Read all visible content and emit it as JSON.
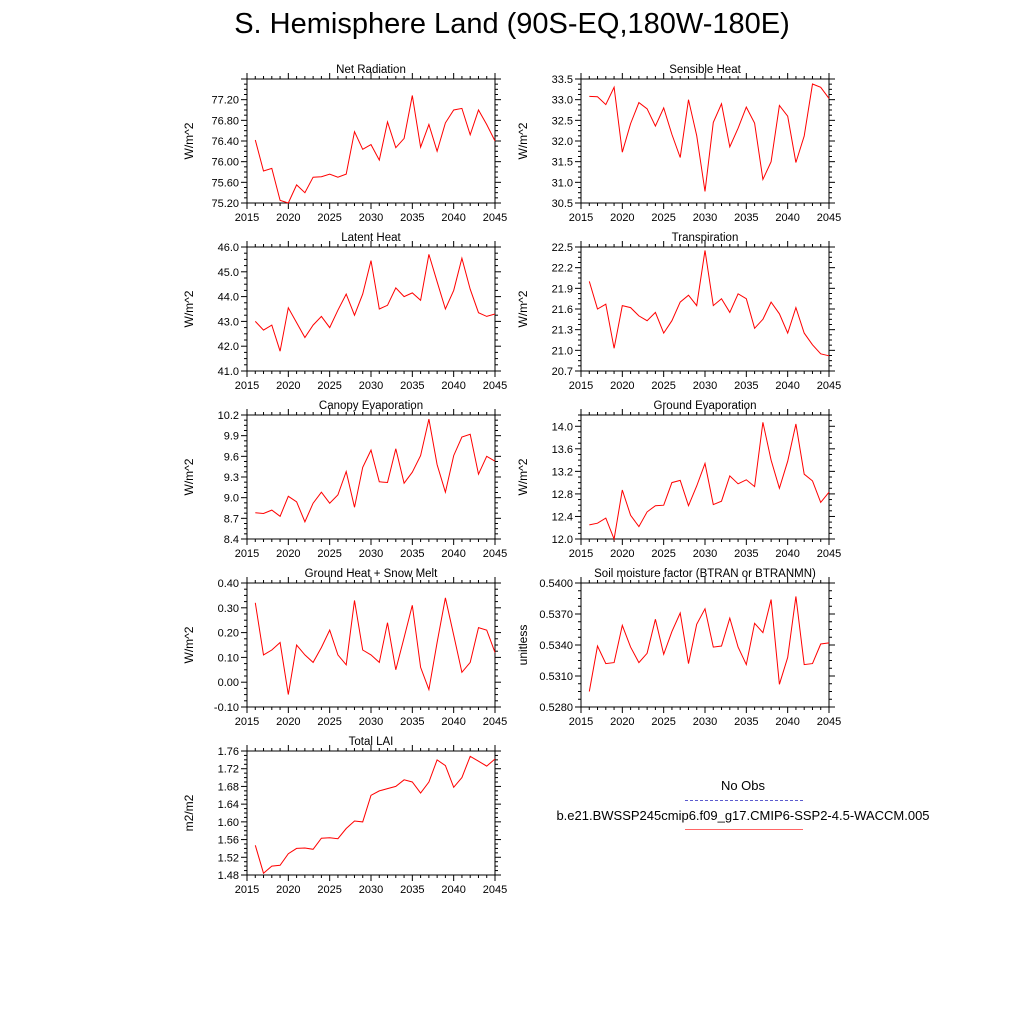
{
  "title": "S. Hemisphere Land (90S-EQ,180W-180E)",
  "legend": {
    "obs_label": "No Obs",
    "model_label": "b.e21.BWSSP245cmip6.f09_g17.CMIP6-SSP2-4.5-WACCM.005",
    "obs_color": "#5b5bcf",
    "model_color": "#ff0000"
  },
  "chart_data": [
    {
      "type": "line",
      "title": "Net Radiation",
      "ylabel": "W/m^2",
      "xlim": [
        2015,
        2045
      ],
      "ylim": [
        75.2,
        77.6
      ],
      "xticks": [
        "2015",
        "2020",
        "2025",
        "2030",
        "2035",
        "2040",
        "2045"
      ],
      "yticks": [
        "75.20",
        "75.60",
        "76.00",
        "76.40",
        "76.80",
        "77.20"
      ],
      "series": [
        {
          "color": "#ff0000",
          "x": [
            2016,
            2017,
            2018,
            2019,
            2020,
            2021,
            2022,
            2023,
            2024,
            2025,
            2026,
            2027,
            2028,
            2029,
            2030,
            2031,
            2032,
            2033,
            2034,
            2035,
            2036,
            2037,
            2038,
            2039,
            2040,
            2041,
            2042,
            2043,
            2044,
            2045
          ],
          "y": [
            76.42,
            75.82,
            75.87,
            75.25,
            75.2,
            75.55,
            75.4,
            75.7,
            75.71,
            75.76,
            75.7,
            75.76,
            76.58,
            76.24,
            76.33,
            76.03,
            76.77,
            76.27,
            76.45,
            77.28,
            76.28,
            76.72,
            76.2,
            76.75,
            77.0,
            77.03,
            76.52,
            77.0,
            76.72,
            76.4
          ]
        }
      ]
    },
    {
      "type": "line",
      "title": "Sensible Heat",
      "ylabel": "W/m^2",
      "xlim": [
        2015,
        2045
      ],
      "ylim": [
        30.5,
        33.5
      ],
      "xticks": [
        "2015",
        "2020",
        "2025",
        "2030",
        "2035",
        "2040",
        "2045"
      ],
      "yticks": [
        "30.5",
        "31.0",
        "31.5",
        "32.0",
        "32.5",
        "33.0",
        "33.5"
      ],
      "series": [
        {
          "color": "#ff0000",
          "x": [
            2016,
            2017,
            2018,
            2019,
            2020,
            2021,
            2022,
            2023,
            2024,
            2025,
            2026,
            2027,
            2028,
            2029,
            2030,
            2031,
            2032,
            2033,
            2034,
            2035,
            2036,
            2037,
            2038,
            2039,
            2040,
            2041,
            2042,
            2043,
            2044,
            2045
          ],
          "y": [
            33.08,
            33.07,
            32.88,
            33.3,
            31.73,
            32.42,
            32.93,
            32.78,
            32.36,
            32.8,
            32.16,
            31.6,
            33.0,
            32.13,
            30.78,
            32.45,
            32.9,
            31.86,
            32.31,
            32.82,
            32.43,
            31.07,
            31.5,
            32.86,
            32.6,
            31.48,
            32.12,
            33.38,
            33.3,
            33.03
          ]
        }
      ]
    },
    {
      "type": "line",
      "title": "Latent Heat",
      "ylabel": "W/m^2",
      "xlim": [
        2015,
        2045
      ],
      "ylim": [
        41.0,
        46.0
      ],
      "xticks": [
        "2015",
        "2020",
        "2025",
        "2030",
        "2035",
        "2040",
        "2045"
      ],
      "yticks": [
        "41.0",
        "42.0",
        "43.0",
        "44.0",
        "45.0",
        "46.0"
      ],
      "series": [
        {
          "color": "#ff0000",
          "x": [
            2016,
            2017,
            2018,
            2019,
            2020,
            2021,
            2022,
            2023,
            2024,
            2025,
            2026,
            2027,
            2028,
            2029,
            2030,
            2031,
            2032,
            2033,
            2034,
            2035,
            2036,
            2037,
            2038,
            2039,
            2040,
            2041,
            2042,
            2043,
            2044,
            2045
          ],
          "y": [
            43.0,
            42.65,
            42.85,
            41.8,
            43.55,
            42.95,
            42.35,
            42.85,
            43.2,
            42.75,
            43.45,
            44.1,
            43.25,
            44.1,
            45.45,
            43.5,
            43.65,
            44.35,
            44.0,
            44.15,
            43.85,
            45.7,
            44.6,
            43.5,
            44.25,
            45.55,
            44.3,
            43.35,
            43.2,
            43.3
          ]
        }
      ]
    },
    {
      "type": "line",
      "title": "Transpiration",
      "ylabel": "W/m^2",
      "xlim": [
        2015,
        2045
      ],
      "ylim": [
        20.7,
        22.5
      ],
      "xticks": [
        "2015",
        "2020",
        "2025",
        "2030",
        "2035",
        "2040",
        "2045"
      ],
      "yticks": [
        "20.7",
        "21.0",
        "21.3",
        "21.6",
        "21.9",
        "22.2",
        "22.5"
      ],
      "series": [
        {
          "color": "#ff0000",
          "x": [
            2016,
            2017,
            2018,
            2019,
            2020,
            2021,
            2022,
            2023,
            2024,
            2025,
            2026,
            2027,
            2028,
            2029,
            2030,
            2031,
            2032,
            2033,
            2034,
            2035,
            2036,
            2037,
            2038,
            2039,
            2040,
            2041,
            2042,
            2043,
            2044,
            2045
          ],
          "y": [
            22.0,
            21.6,
            21.67,
            21.03,
            21.65,
            21.62,
            21.5,
            21.43,
            21.55,
            21.25,
            21.43,
            21.7,
            21.8,
            21.65,
            22.45,
            21.65,
            21.75,
            21.55,
            21.82,
            21.75,
            21.32,
            21.45,
            21.7,
            21.53,
            21.25,
            21.62,
            21.25,
            21.08,
            20.95,
            20.92
          ]
        }
      ]
    },
    {
      "type": "line",
      "title": "Canopy Evaporation",
      "ylabel": "W/m^2",
      "xlim": [
        2015,
        2045
      ],
      "ylim": [
        8.4,
        10.2
      ],
      "xticks": [
        "2015",
        "2020",
        "2025",
        "2030",
        "2035",
        "2040",
        "2045"
      ],
      "yticks": [
        "8.4",
        "8.7",
        "9.0",
        "9.3",
        "9.6",
        "9.9",
        "10.2"
      ],
      "series": [
        {
          "color": "#ff0000",
          "x": [
            2016,
            2017,
            2018,
            2019,
            2020,
            2021,
            2022,
            2023,
            2024,
            2025,
            2026,
            2027,
            2028,
            2029,
            2030,
            2031,
            2032,
            2033,
            2034,
            2035,
            2036,
            2037,
            2038,
            2039,
            2040,
            2041,
            2042,
            2043,
            2044,
            2045
          ],
          "y": [
            8.78,
            8.77,
            8.82,
            8.73,
            9.02,
            8.94,
            8.65,
            8.92,
            9.08,
            8.92,
            9.04,
            9.38,
            8.86,
            9.44,
            9.69,
            9.23,
            9.22,
            9.71,
            9.21,
            9.37,
            9.61,
            10.14,
            9.48,
            9.08,
            9.61,
            9.88,
            9.92,
            9.34,
            9.6,
            9.53
          ]
        }
      ]
    },
    {
      "type": "line",
      "title": "Ground Evaporation",
      "ylabel": "W/m^2",
      "xlim": [
        2015,
        2045
      ],
      "ylim": [
        12.0,
        14.2
      ],
      "xticks": [
        "2015",
        "2020",
        "2025",
        "2030",
        "2035",
        "2040",
        "2045"
      ],
      "yticks": [
        "12.0",
        "12.4",
        "12.8",
        "13.2",
        "13.6",
        "14.0"
      ],
      "series": [
        {
          "color": "#ff0000",
          "x": [
            2016,
            2017,
            2018,
            2019,
            2020,
            2021,
            2022,
            2023,
            2024,
            2025,
            2026,
            2027,
            2028,
            2029,
            2030,
            2031,
            2032,
            2033,
            2034,
            2035,
            2036,
            2037,
            2038,
            2039,
            2040,
            2041,
            2042,
            2043,
            2044,
            2045
          ],
          "y": [
            12.25,
            12.28,
            12.37,
            12.0,
            12.87,
            12.42,
            12.22,
            12.48,
            12.59,
            12.6,
            13.0,
            13.04,
            12.59,
            12.94,
            13.34,
            12.61,
            12.67,
            13.12,
            12.98,
            13.05,
            12.93,
            14.07,
            13.4,
            12.9,
            13.38,
            14.04,
            13.15,
            13.03,
            12.65,
            12.83
          ]
        }
      ]
    },
    {
      "type": "line",
      "title": "Ground Heat + Snow Melt",
      "ylabel": "W/m^2",
      "xlim": [
        2015,
        2045
      ],
      "ylim": [
        -0.1,
        0.4
      ],
      "xticks": [
        "2015",
        "2020",
        "2025",
        "2030",
        "2035",
        "2040",
        "2045"
      ],
      "yticks": [
        "-0.10",
        "0.00",
        "0.10",
        "0.20",
        "0.30",
        "0.40"
      ],
      "series": [
        {
          "color": "#ff0000",
          "x": [
            2016,
            2017,
            2018,
            2019,
            2020,
            2021,
            2022,
            2023,
            2024,
            2025,
            2026,
            2027,
            2028,
            2029,
            2030,
            2031,
            2032,
            2033,
            2034,
            2035,
            2036,
            2037,
            2038,
            2039,
            2040,
            2041,
            2042,
            2043,
            2044,
            2045
          ],
          "y": [
            0.32,
            0.11,
            0.13,
            0.16,
            -0.05,
            0.15,
            0.11,
            0.08,
            0.14,
            0.21,
            0.11,
            0.07,
            0.33,
            0.13,
            0.11,
            0.08,
            0.24,
            0.05,
            0.18,
            0.31,
            0.06,
            -0.03,
            0.16,
            0.34,
            0.19,
            0.04,
            0.08,
            0.22,
            0.21,
            0.12
          ]
        }
      ]
    },
    {
      "type": "line",
      "title": "Soil moisture factor (BTRAN or BTRANMN)",
      "ylabel": "unitless",
      "xlim": [
        2015,
        2045
      ],
      "ylim": [
        0.528,
        0.54
      ],
      "xticks": [
        "2015",
        "2020",
        "2025",
        "2030",
        "2035",
        "2040",
        "2045"
      ],
      "yticks": [
        "0.5280",
        "0.5310",
        "0.5340",
        "0.5370",
        "0.5400"
      ],
      "series": [
        {
          "color": "#ff0000",
          "x": [
            2016,
            2017,
            2018,
            2019,
            2020,
            2021,
            2022,
            2023,
            2024,
            2025,
            2026,
            2027,
            2028,
            2029,
            2030,
            2031,
            2032,
            2033,
            2034,
            2035,
            2036,
            2037,
            2038,
            2039,
            2040,
            2041,
            2042,
            2043,
            2044,
            2045
          ],
          "y": [
            0.5295,
            0.5339,
            0.5322,
            0.5323,
            0.5359,
            0.5338,
            0.5323,
            0.5332,
            0.5365,
            0.5331,
            0.5353,
            0.5371,
            0.5322,
            0.536,
            0.5375,
            0.5338,
            0.5339,
            0.5366,
            0.5338,
            0.5321,
            0.5361,
            0.5352,
            0.5384,
            0.5302,
            0.5328,
            0.5387,
            0.5321,
            0.5322,
            0.5341,
            0.5342
          ]
        }
      ]
    },
    {
      "type": "line",
      "title": "Total LAI",
      "ylabel": "m2/m2",
      "xlim": [
        2015,
        2045
      ],
      "ylim": [
        1.48,
        1.76
      ],
      "xticks": [
        "2015",
        "2020",
        "2025",
        "2030",
        "2035",
        "2040",
        "2045"
      ],
      "yticks": [
        "1.48",
        "1.52",
        "1.56",
        "1.60",
        "1.64",
        "1.68",
        "1.72",
        "1.76"
      ],
      "series": [
        {
          "color": "#ff0000",
          "x": [
            2016,
            2017,
            2018,
            2019,
            2020,
            2021,
            2022,
            2023,
            2024,
            2025,
            2026,
            2027,
            2028,
            2029,
            2030,
            2031,
            2032,
            2033,
            2034,
            2035,
            2036,
            2037,
            2038,
            2039,
            2040,
            2041,
            2042,
            2043,
            2044,
            2045
          ],
          "y": [
            1.547,
            1.484,
            1.5,
            1.502,
            1.528,
            1.54,
            1.541,
            1.538,
            1.563,
            1.564,
            1.562,
            1.585,
            1.602,
            1.6,
            1.66,
            1.67,
            1.675,
            1.68,
            1.695,
            1.69,
            1.665,
            1.69,
            1.74,
            1.727,
            1.678,
            1.7,
            1.748,
            1.737,
            1.726,
            1.742
          ]
        }
      ]
    }
  ]
}
